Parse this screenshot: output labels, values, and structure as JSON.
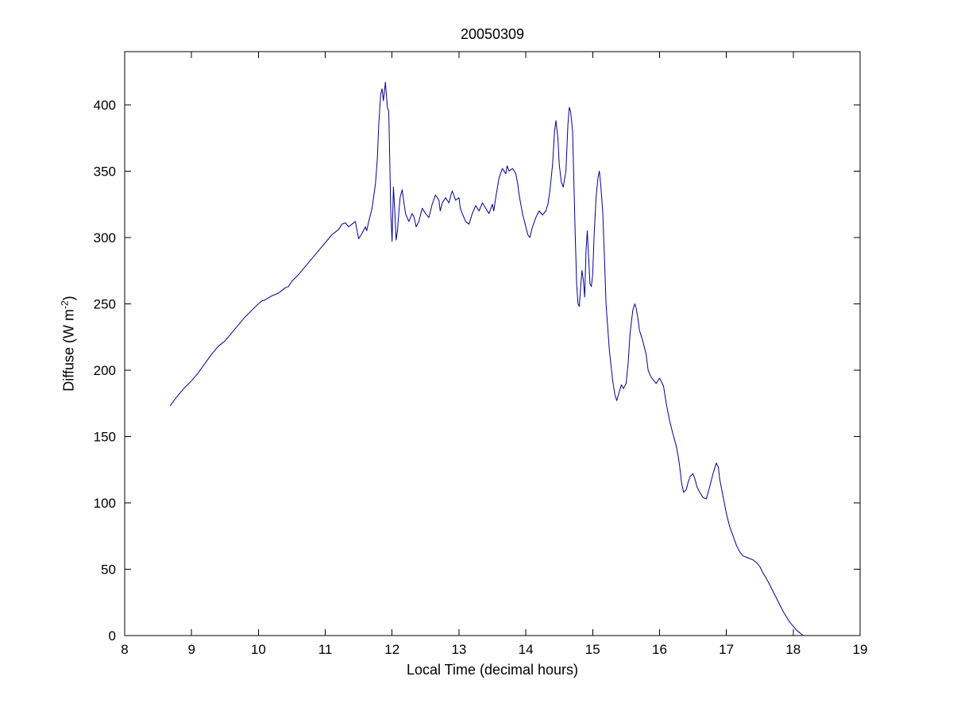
{
  "figure": {
    "title": "20050309",
    "xlabel": "Local Time (decimal hours)",
    "ylabel_prefix": "Diffuse (W m",
    "ylabel_sup": "-2",
    "ylabel_suffix": ")"
  },
  "chart_data": {
    "type": "line",
    "title": "20050309",
    "xlabel": "Local Time (decimal hours)",
    "ylabel": "Diffuse (W m^-2)",
    "xlim": [
      8,
      19
    ],
    "ylim": [
      0,
      440
    ],
    "xticks": [
      8,
      9,
      10,
      11,
      12,
      13,
      14,
      15,
      16,
      17,
      18,
      19
    ],
    "yticks": [
      0,
      50,
      100,
      150,
      200,
      250,
      300,
      350,
      400
    ],
    "grid": false,
    "legend": null,
    "line_color": "#000099",
    "axis_color": "#000000",
    "series": [
      {
        "name": "Diffuse",
        "points": [
          [
            8.68,
            173
          ],
          [
            8.75,
            178
          ],
          [
            8.8,
            181
          ],
          [
            8.9,
            187
          ],
          [
            9.0,
            192
          ],
          [
            9.1,
            198
          ],
          [
            9.2,
            205
          ],
          [
            9.3,
            212
          ],
          [
            9.4,
            218
          ],
          [
            9.5,
            222
          ],
          [
            9.6,
            228
          ],
          [
            9.7,
            234
          ],
          [
            9.8,
            240
          ],
          [
            9.9,
            245
          ],
          [
            10.0,
            250
          ],
          [
            10.05,
            252
          ],
          [
            10.1,
            253
          ],
          [
            10.2,
            256
          ],
          [
            10.3,
            258
          ],
          [
            10.35,
            260
          ],
          [
            10.4,
            262
          ],
          [
            10.45,
            263
          ],
          [
            10.5,
            267
          ],
          [
            10.6,
            272
          ],
          [
            10.7,
            278
          ],
          [
            10.8,
            284
          ],
          [
            10.9,
            290
          ],
          [
            11.0,
            296
          ],
          [
            11.1,
            302
          ],
          [
            11.2,
            306
          ],
          [
            11.25,
            310
          ],
          [
            11.3,
            311
          ],
          [
            11.35,
            308
          ],
          [
            11.4,
            310
          ],
          [
            11.45,
            312
          ],
          [
            11.5,
            299
          ],
          [
            11.55,
            303
          ],
          [
            11.6,
            308
          ],
          [
            11.62,
            305
          ],
          [
            11.65,
            312
          ],
          [
            11.7,
            322
          ],
          [
            11.75,
            340
          ],
          [
            11.78,
            360
          ],
          [
            11.8,
            385
          ],
          [
            11.83,
            408
          ],
          [
            11.85,
            412
          ],
          [
            11.87,
            403
          ],
          [
            11.9,
            417
          ],
          [
            11.93,
            398
          ],
          [
            11.95,
            395
          ],
          [
            11.96,
            370
          ],
          [
            11.98,
            320
          ],
          [
            12.0,
            297
          ],
          [
            12.02,
            338
          ],
          [
            12.04,
            320
          ],
          [
            12.06,
            298
          ],
          [
            12.08,
            305
          ],
          [
            12.1,
            318
          ],
          [
            12.12,
            330
          ],
          [
            12.15,
            336
          ],
          [
            12.18,
            325
          ],
          [
            12.2,
            318
          ],
          [
            12.25,
            312
          ],
          [
            12.3,
            318
          ],
          [
            12.33,
            315
          ],
          [
            12.36,
            308
          ],
          [
            12.4,
            312
          ],
          [
            12.45,
            322
          ],
          [
            12.5,
            318
          ],
          [
            12.55,
            315
          ],
          [
            12.6,
            325
          ],
          [
            12.65,
            332
          ],
          [
            12.7,
            328
          ],
          [
            12.72,
            320
          ],
          [
            12.75,
            326
          ],
          [
            12.8,
            330
          ],
          [
            12.85,
            326
          ],
          [
            12.88,
            332
          ],
          [
            12.9,
            335
          ],
          [
            12.95,
            328
          ],
          [
            13.0,
            330
          ],
          [
            13.02,
            322
          ],
          [
            13.05,
            318
          ],
          [
            13.1,
            312
          ],
          [
            13.15,
            310
          ],
          [
            13.2,
            318
          ],
          [
            13.25,
            324
          ],
          [
            13.3,
            320
          ],
          [
            13.35,
            326
          ],
          [
            13.4,
            322
          ],
          [
            13.45,
            318
          ],
          [
            13.5,
            325
          ],
          [
            13.52,
            320
          ],
          [
            13.55,
            330
          ],
          [
            13.6,
            345
          ],
          [
            13.65,
            352
          ],
          [
            13.7,
            348
          ],
          [
            13.72,
            354
          ],
          [
            13.75,
            350
          ],
          [
            13.8,
            352
          ],
          [
            13.85,
            348
          ],
          [
            13.88,
            340
          ],
          [
            13.9,
            332
          ],
          [
            13.95,
            318
          ],
          [
            14.0,
            308
          ],
          [
            14.03,
            302
          ],
          [
            14.06,
            300
          ],
          [
            14.1,
            308
          ],
          [
            14.15,
            315
          ],
          [
            14.2,
            320
          ],
          [
            14.25,
            317
          ],
          [
            14.3,
            320
          ],
          [
            14.33,
            325
          ],
          [
            14.36,
            335
          ],
          [
            14.4,
            355
          ],
          [
            14.43,
            380
          ],
          [
            14.45,
            388
          ],
          [
            14.48,
            375
          ],
          [
            14.5,
            355
          ],
          [
            14.53,
            342
          ],
          [
            14.56,
            338
          ],
          [
            14.6,
            350
          ],
          [
            14.63,
            385
          ],
          [
            14.65,
            398
          ],
          [
            14.67,
            395
          ],
          [
            14.7,
            380
          ],
          [
            14.72,
            340
          ],
          [
            14.74,
            300
          ],
          [
            14.76,
            265
          ],
          [
            14.78,
            250
          ],
          [
            14.8,
            248
          ],
          [
            14.82,
            262
          ],
          [
            14.84,
            275
          ],
          [
            14.86,
            268
          ],
          [
            14.88,
            255
          ],
          [
            14.9,
            290
          ],
          [
            14.92,
            305
          ],
          [
            14.94,
            285
          ],
          [
            14.96,
            265
          ],
          [
            14.98,
            263
          ],
          [
            15.0,
            272
          ],
          [
            15.02,
            300
          ],
          [
            15.05,
            330
          ],
          [
            15.08,
            345
          ],
          [
            15.1,
            350
          ],
          [
            15.12,
            340
          ],
          [
            15.15,
            320
          ],
          [
            15.18,
            280
          ],
          [
            15.2,
            250
          ],
          [
            15.25,
            215
          ],
          [
            15.3,
            192
          ],
          [
            15.33,
            182
          ],
          [
            15.36,
            177
          ],
          [
            15.4,
            184
          ],
          [
            15.43,
            189
          ],
          [
            15.46,
            186
          ],
          [
            15.5,
            190
          ],
          [
            15.53,
            205
          ],
          [
            15.56,
            228
          ],
          [
            15.6,
            245
          ],
          [
            15.63,
            250
          ],
          [
            15.65,
            247
          ],
          [
            15.68,
            238
          ],
          [
            15.7,
            230
          ],
          [
            15.75,
            222
          ],
          [
            15.8,
            212
          ],
          [
            15.83,
            200
          ],
          [
            15.86,
            196
          ],
          [
            15.9,
            193
          ],
          [
            15.95,
            190
          ],
          [
            16.0,
            194
          ],
          [
            16.03,
            191
          ],
          [
            16.06,
            188
          ],
          [
            16.1,
            175
          ],
          [
            16.15,
            162
          ],
          [
            16.2,
            152
          ],
          [
            16.25,
            143
          ],
          [
            16.28,
            135
          ],
          [
            16.3,
            128
          ],
          [
            16.33,
            115
          ],
          [
            16.36,
            108
          ],
          [
            16.4,
            110
          ],
          [
            16.43,
            116
          ],
          [
            16.46,
            120
          ],
          [
            16.5,
            122
          ],
          [
            16.53,
            118
          ],
          [
            16.56,
            112
          ],
          [
            16.6,
            108
          ],
          [
            16.65,
            104
          ],
          [
            16.7,
            103
          ],
          [
            16.75,
            112
          ],
          [
            16.8,
            122
          ],
          [
            16.85,
            130
          ],
          [
            16.88,
            127
          ],
          [
            16.9,
            118
          ],
          [
            16.95,
            105
          ],
          [
            17.0,
            92
          ],
          [
            17.05,
            82
          ],
          [
            17.1,
            75
          ],
          [
            17.15,
            68
          ],
          [
            17.2,
            63
          ],
          [
            17.25,
            60
          ],
          [
            17.3,
            59
          ],
          [
            17.35,
            58
          ],
          [
            17.4,
            57
          ],
          [
            17.45,
            55
          ],
          [
            17.5,
            52
          ],
          [
            17.55,
            47
          ],
          [
            17.6,
            43
          ],
          [
            17.65,
            38
          ],
          [
            17.7,
            33
          ],
          [
            17.75,
            28
          ],
          [
            17.8,
            23
          ],
          [
            17.85,
            18
          ],
          [
            17.9,
            14
          ],
          [
            17.95,
            10
          ],
          [
            18.0,
            7
          ],
          [
            18.05,
            4
          ],
          [
            18.1,
            2
          ],
          [
            18.15,
            0
          ]
        ]
      }
    ]
  }
}
